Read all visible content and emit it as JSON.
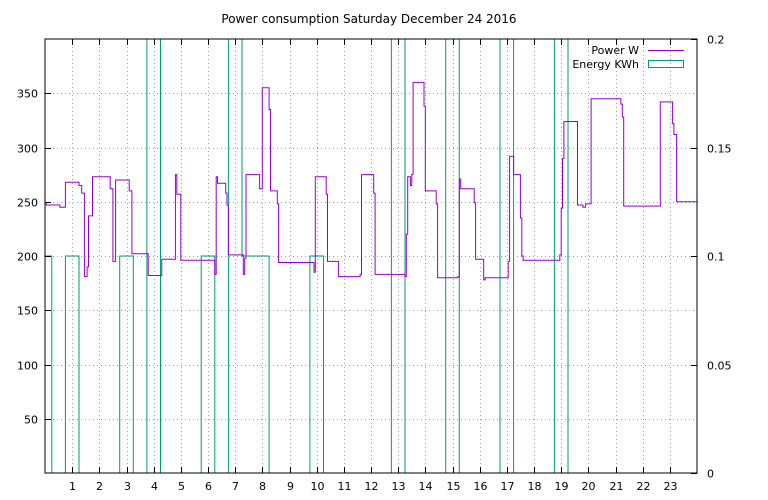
{
  "chart_data": {
    "type": "line",
    "title": "Power consumption Saturday December 24 2016",
    "xlabel": "",
    "ylabel": "",
    "y2label": "",
    "xlim": [
      0,
      24
    ],
    "ylim": [
      0,
      400
    ],
    "y2lim": [
      0,
      0.2
    ],
    "x_ticks": [
      1,
      2,
      3,
      4,
      5,
      6,
      7,
      8,
      9,
      10,
      11,
      12,
      13,
      14,
      15,
      16,
      17,
      18,
      19,
      20,
      21,
      22,
      23
    ],
    "x_tick_labels": [
      "1",
      "2",
      "3",
      "4",
      "5",
      "6",
      "7",
      "8",
      "9",
      "10",
      "11",
      "12",
      "13",
      "14",
      "15",
      "16",
      "17",
      "18",
      "19",
      "20",
      "21",
      "22",
      "23"
    ],
    "y_ticks": [
      50,
      100,
      150,
      200,
      250,
      300,
      350
    ],
    "y_tick_labels": [
      "50",
      "100",
      "150",
      "200",
      "250",
      "300",
      "350"
    ],
    "y2_ticks": [
      0,
      0.05,
      0.1,
      0.15,
      0.2
    ],
    "y2_tick_labels": [
      "0",
      "0.05",
      "0.1",
      "0.15",
      "0.2"
    ],
    "grid": true,
    "legend_position": "top-right",
    "legend": [
      {
        "label": "Power W",
        "color": "#9400d3"
      },
      {
        "label": "Energy KWh",
        "color": "#009e73"
      }
    ],
    "series": [
      {
        "name": "Power W",
        "axis": "left",
        "color": "#9400d3",
        "x": [
          0,
          0.05,
          0.05,
          0.55,
          0.55,
          0.75,
          0.75,
          1.25,
          1.25,
          1.35,
          1.35,
          1.45,
          1.45,
          1.55,
          1.55,
          1.6,
          1.6,
          1.75,
          1.75,
          2.4,
          2.4,
          2.5,
          2.5,
          2.6,
          2.6,
          3.1,
          3.1,
          3.2,
          3.2,
          3.8,
          3.8,
          4.3,
          4.3,
          4.8,
          4.8,
          4.85,
          4.85,
          5.0,
          5.0,
          6.25,
          6.25,
          6.3,
          6.3,
          6.35,
          6.35,
          6.65,
          6.65,
          6.7,
          6.7,
          6.75,
          6.75,
          7.3,
          7.3,
          7.35,
          7.35,
          7.4,
          7.4,
          7.9,
          7.9,
          8.0,
          8.0,
          8.25,
          8.25,
          8.3,
          8.3,
          8.55,
          8.55,
          8.6,
          8.6,
          9.9,
          9.9,
          9.95,
          9.95,
          10.35,
          10.35,
          10.4,
          10.4,
          10.8,
          10.8,
          11.6,
          11.6,
          11.65,
          11.65,
          12.1,
          12.1,
          12.15,
          12.15,
          13.25,
          13.25,
          13.3,
          13.3,
          13.35,
          13.35,
          13.45,
          13.45,
          13.5,
          13.5,
          13.55,
          13.55,
          13.95,
          13.95,
          14.0,
          14.0,
          14.4,
          14.4,
          14.45,
          14.45,
          15.2,
          15.2,
          15.25,
          15.25,
          15.3,
          15.3,
          15.8,
          15.8,
          15.85,
          15.85,
          16.15,
          16.15,
          16.2,
          16.2,
          17.05,
          17.05,
          17.1,
          17.1,
          17.25,
          17.25,
          17.5,
          17.5,
          17.55,
          17.55,
          17.6,
          17.6,
          18.95,
          18.95,
          19.0,
          19.0,
          19.05,
          19.05,
          19.1,
          19.1,
          19.6,
          19.6,
          19.8,
          19.8,
          19.9,
          19.9,
          20.1,
          20.1,
          21.2,
          21.2,
          21.25,
          21.25,
          21.3,
          21.3,
          22.65,
          22.65,
          23.1,
          23.1,
          23.15,
          23.15,
          23.25,
          23.25,
          24.0
        ],
        "y": [
          248,
          248,
          247,
          247,
          245,
          245,
          268,
          268,
          265,
          265,
          258,
          258,
          181,
          181,
          190,
          190,
          237,
          237,
          273,
          273,
          262,
          262,
          195,
          195,
          270,
          270,
          260,
          260,
          202,
          202,
          182,
          182,
          197,
          197,
          275,
          275,
          257,
          257,
          196,
          196,
          183,
          183,
          273,
          273,
          267,
          267,
          258,
          258,
          247,
          247,
          201,
          201,
          183,
          183,
          198,
          198,
          275,
          275,
          262,
          262,
          355,
          355,
          335,
          335,
          260,
          260,
          248,
          248,
          194,
          194,
          185,
          185,
          273,
          273,
          257,
          257,
          195,
          195,
          181,
          181,
          183,
          183,
          275,
          275,
          258,
          258,
          183,
          183,
          181,
          181,
          220,
          220,
          273,
          273,
          265,
          265,
          275,
          275,
          360,
          360,
          338,
          338,
          260,
          260,
          248,
          248,
          180,
          180,
          181,
          181,
          271,
          271,
          262,
          262,
          249,
          249,
          197,
          197,
          178,
          178,
          180,
          180,
          195,
          195,
          292,
          292,
          275,
          275,
          235,
          235,
          200,
          200,
          196,
          196,
          201,
          201,
          244,
          244,
          290,
          290,
          324,
          324,
          247,
          247,
          245,
          245,
          248,
          248,
          345,
          345,
          340,
          340,
          328,
          328,
          246,
          246,
          342,
          342,
          322,
          322,
          312,
          312,
          250,
          250
        ]
      },
      {
        "name": "Energy KWh",
        "axis": "right",
        "color": "#009e73",
        "x": [
          0,
          0.25,
          0.25,
          0.75,
          0.75,
          1.25,
          1.25,
          2.75,
          2.75,
          3.25,
          3.25,
          3.75,
          3.75,
          4.25,
          4.25,
          5.75,
          5.75,
          6.25,
          6.25,
          6.75,
          6.75,
          7.25,
          7.25,
          7.75,
          7.75,
          8.25,
          8.25,
          9.75,
          9.75,
          10.25,
          10.25,
          12.75,
          12.75,
          13.25,
          13.25,
          14.75,
          14.75,
          15.25,
          15.25,
          16.75,
          16.75,
          17.25,
          17.25,
          18.75,
          18.75,
          19.25,
          19.25,
          24.0
        ],
        "y": [
          0.1,
          0.1,
          0.0,
          0.0,
          0.1,
          0.1,
          0.0,
          0.0,
          0.1,
          0.1,
          0.0,
          0.0,
          0.2,
          0.2,
          0.0,
          0.0,
          0.1,
          0.1,
          0.0,
          0.0,
          0.2,
          0.2,
          0.1,
          0.1,
          0.1,
          0.1,
          0.0,
          0.0,
          0.1,
          0.1,
          0.0,
          0.0,
          0.2,
          0.2,
          0.0,
          0.0,
          0.2,
          0.2,
          0.0,
          0.0,
          0.2,
          0.2,
          0.0,
          0.0,
          0.2,
          0.2,
          0.0,
          0.0
        ]
      }
    ]
  }
}
